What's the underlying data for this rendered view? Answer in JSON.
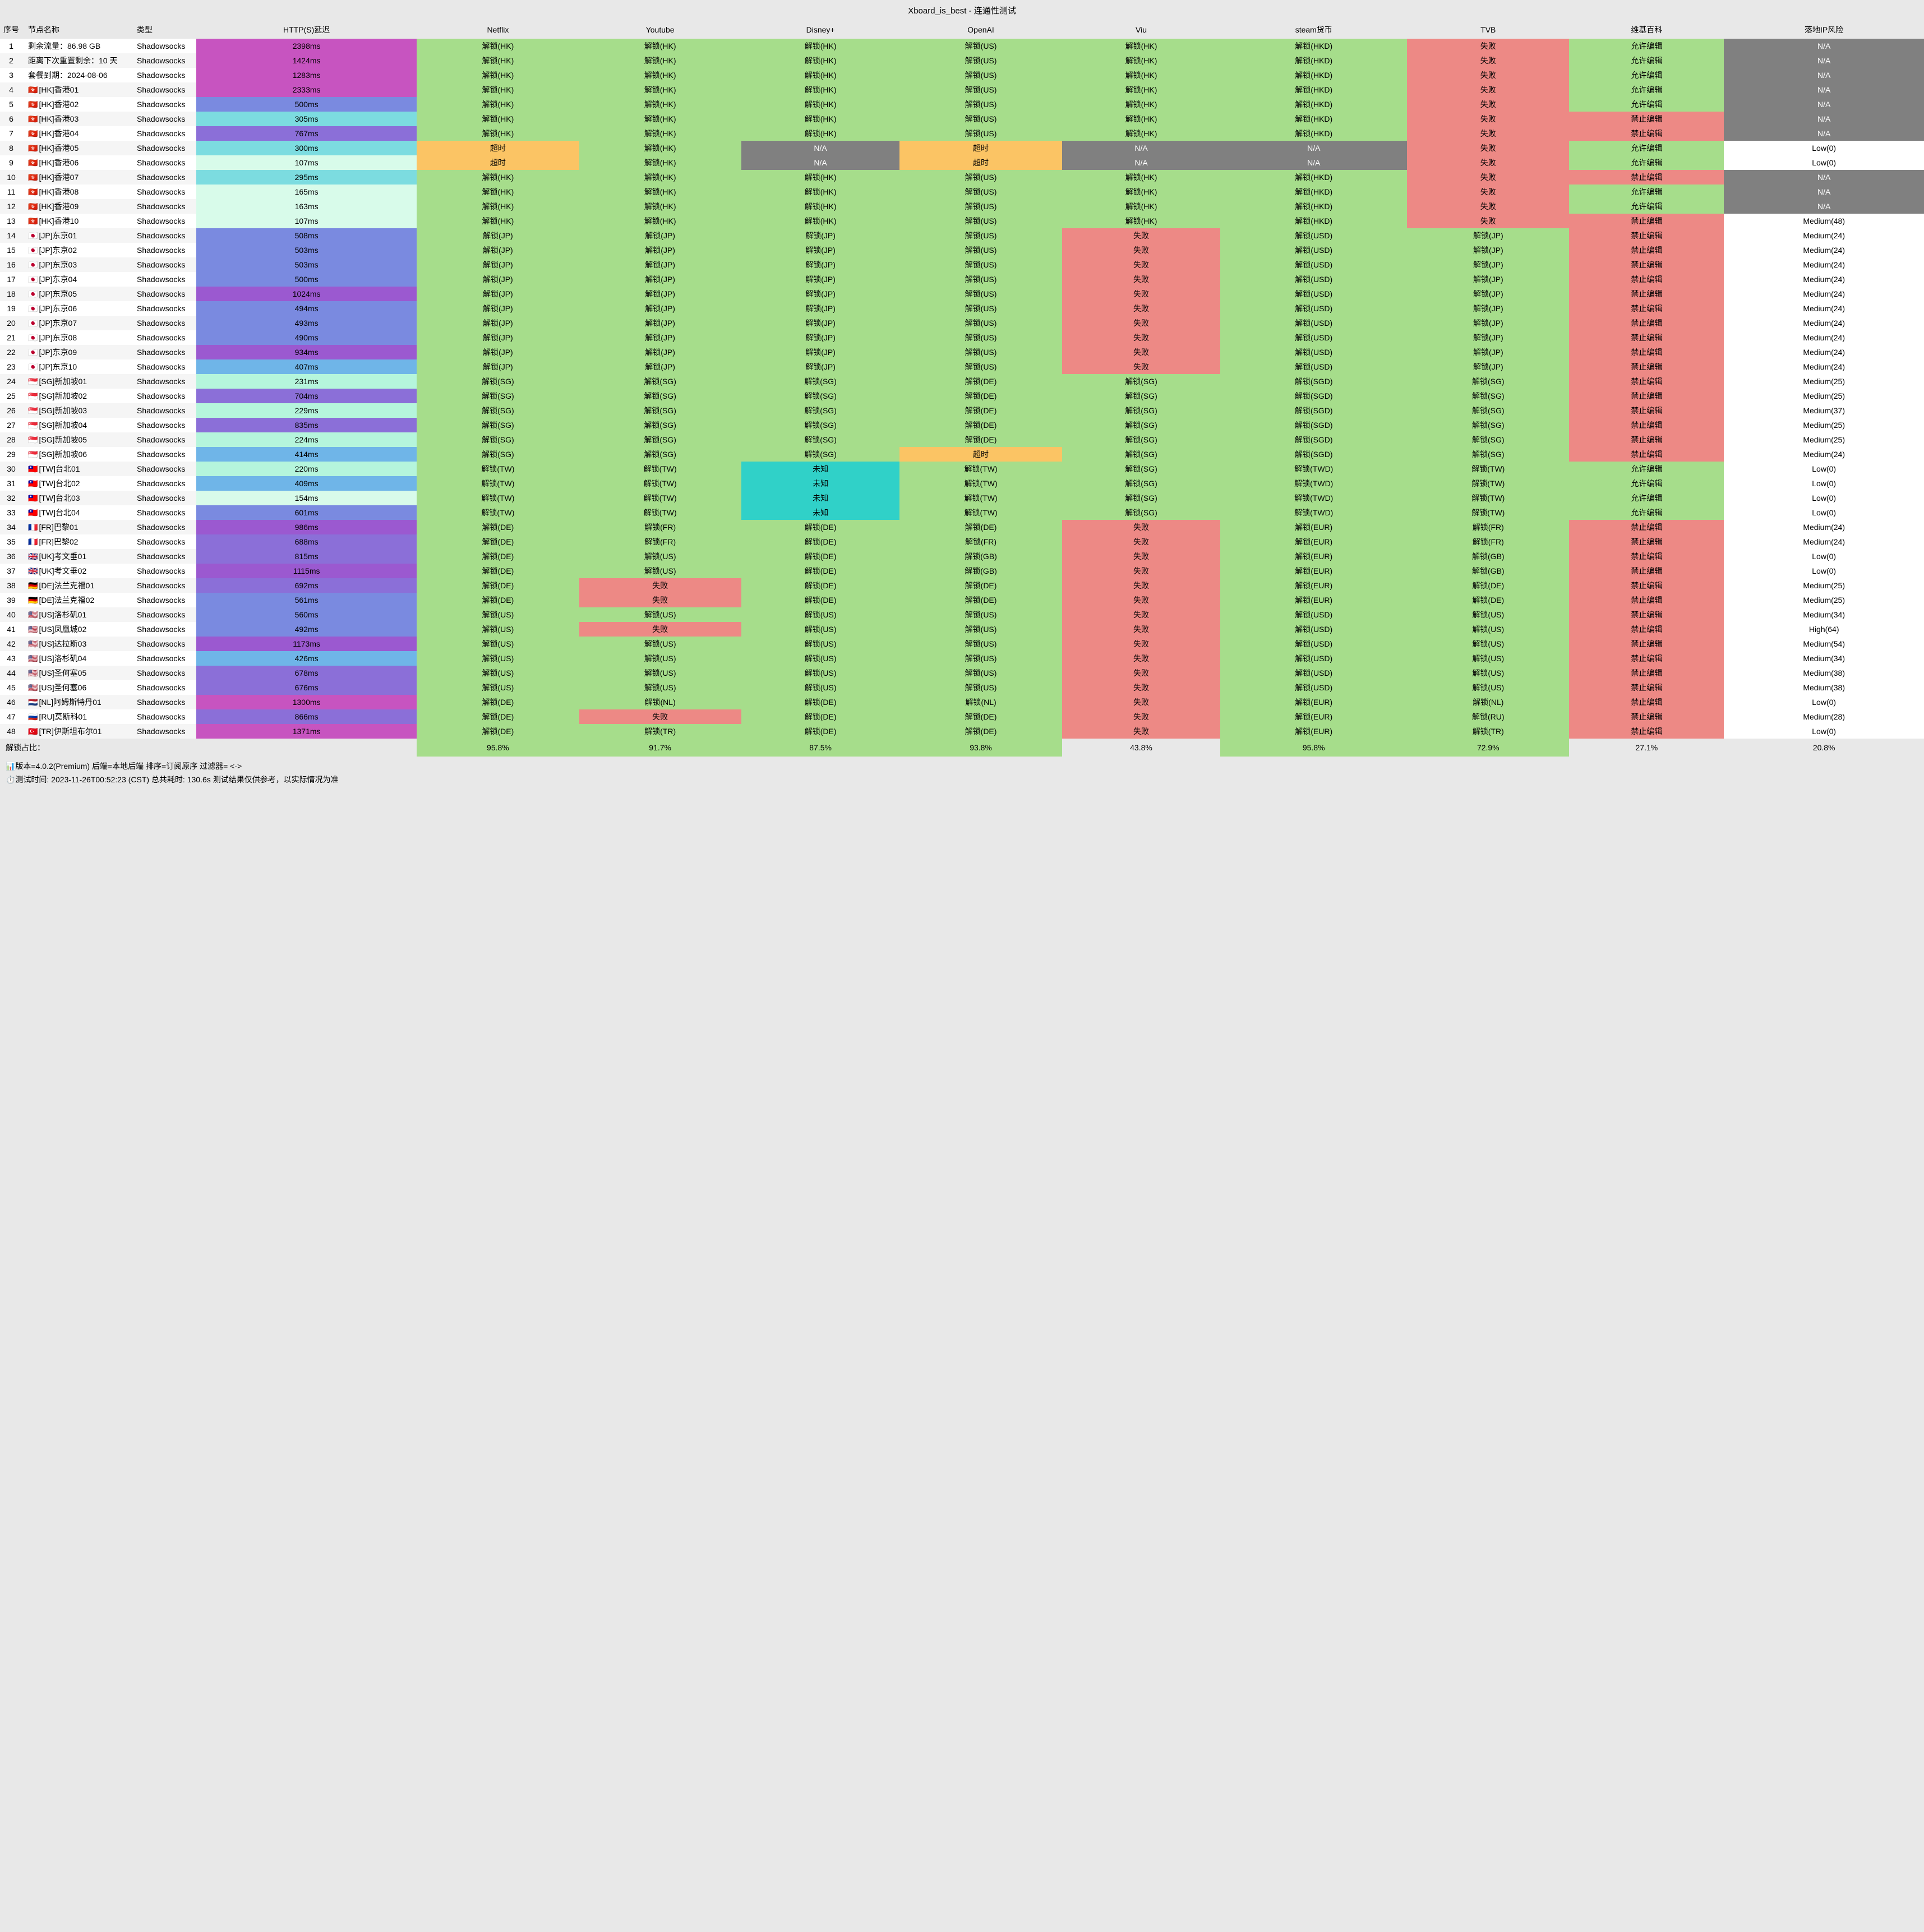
{
  "title": "Xboard_is_best - 连通性测试",
  "headers": [
    "序号",
    "节点名称",
    "类型",
    "HTTP(S)延迟",
    "Netflix",
    "Youtube",
    "Disney+",
    "OpenAI",
    "Viu",
    "steam货币",
    "TVB",
    "维基百科",
    "落地IP风险"
  ],
  "colors": {
    "green": "#a6dd8b",
    "red": "#ed8985",
    "gray": "#808080",
    "yellow": "#fbc464",
    "cyan": "#30d1c8",
    "mint": "#b5f5dc",
    "blue1": "#7a8ae0",
    "blue2": "#6fb5e8",
    "purple": "#9b59d0",
    "magenta": "#c754c0",
    "mintLight": "#d8fbea",
    "white": "#ffffff",
    "headerBg": "#e8e8e8"
  },
  "latencyScale": [
    {
      "max": 180,
      "color": "#d8fbea"
    },
    {
      "max": 260,
      "color": "#b5f5dc"
    },
    {
      "max": 350,
      "color": "#7cdce0"
    },
    {
      "max": 480,
      "color": "#6fb5e8"
    },
    {
      "max": 650,
      "color": "#7a8ae0"
    },
    {
      "max": 900,
      "color": "#8b6fd8"
    },
    {
      "max": 1200,
      "color": "#9b59d0"
    },
    {
      "max": 99999,
      "color": "#c754c0"
    }
  ],
  "cellStyles": {
    "解锁": "green",
    "失败": "red",
    "N/A": "gray",
    "超时": "yellow",
    "未知": "cyan",
    "允许编辑": "green",
    "禁止编辑": "red",
    "Low": "white",
    "Medium": "white",
    "High": "white"
  },
  "rows": [
    {
      "seq": 1,
      "name": "剩余流量：86.98 GB",
      "type": "Shadowsocks",
      "latency": "2398ms",
      "cells": [
        "解锁(HK)",
        "解锁(HK)",
        "解锁(HK)",
        "解锁(US)",
        "解锁(HK)",
        "解锁(HKD)",
        "失败",
        "允许编辑",
        "N/A"
      ]
    },
    {
      "seq": 2,
      "name": "距离下次重置剩余：10 天",
      "type": "Shadowsocks",
      "latency": "1424ms",
      "cells": [
        "解锁(HK)",
        "解锁(HK)",
        "解锁(HK)",
        "解锁(US)",
        "解锁(HK)",
        "解锁(HKD)",
        "失败",
        "允许编辑",
        "N/A"
      ]
    },
    {
      "seq": 3,
      "name": "套餐到期：2024-08-06",
      "type": "Shadowsocks",
      "latency": "1283ms",
      "cells": [
        "解锁(HK)",
        "解锁(HK)",
        "解锁(HK)",
        "解锁(US)",
        "解锁(HK)",
        "解锁(HKD)",
        "失败",
        "允许编辑",
        "N/A"
      ]
    },
    {
      "seq": 4,
      "flag": "🇭🇰",
      "name": "[HK]香港01",
      "type": "Shadowsocks",
      "latency": "2333ms",
      "cells": [
        "解锁(HK)",
        "解锁(HK)",
        "解锁(HK)",
        "解锁(US)",
        "解锁(HK)",
        "解锁(HKD)",
        "失败",
        "允许编辑",
        "N/A"
      ]
    },
    {
      "seq": 5,
      "flag": "🇭🇰",
      "name": "[HK]香港02",
      "type": "Shadowsocks",
      "latency": "500ms",
      "cells": [
        "解锁(HK)",
        "解锁(HK)",
        "解锁(HK)",
        "解锁(US)",
        "解锁(HK)",
        "解锁(HKD)",
        "失败",
        "允许编辑",
        "N/A"
      ]
    },
    {
      "seq": 6,
      "flag": "🇭🇰",
      "name": "[HK]香港03",
      "type": "Shadowsocks",
      "latency": "305ms",
      "cells": [
        "解锁(HK)",
        "解锁(HK)",
        "解锁(HK)",
        "解锁(US)",
        "解锁(HK)",
        "解锁(HKD)",
        "失败",
        "禁止编辑",
        "N/A"
      ]
    },
    {
      "seq": 7,
      "flag": "🇭🇰",
      "name": "[HK]香港04",
      "type": "Shadowsocks",
      "latency": "767ms",
      "cells": [
        "解锁(HK)",
        "解锁(HK)",
        "解锁(HK)",
        "解锁(US)",
        "解锁(HK)",
        "解锁(HKD)",
        "失败",
        "禁止编辑",
        "N/A"
      ]
    },
    {
      "seq": 8,
      "flag": "🇭🇰",
      "name": "[HK]香港05",
      "type": "Shadowsocks",
      "latency": "300ms",
      "cells": [
        "超时",
        "解锁(HK)",
        "N/A",
        "超时",
        "N/A",
        "N/A",
        "失败",
        "允许编辑",
        "Low(0)"
      ]
    },
    {
      "seq": 9,
      "flag": "🇭🇰",
      "name": "[HK]香港06",
      "type": "Shadowsocks",
      "latency": "107ms",
      "cells": [
        "超时",
        "解锁(HK)",
        "N/A",
        "超时",
        "N/A",
        "N/A",
        "失败",
        "允许编辑",
        "Low(0)"
      ]
    },
    {
      "seq": 10,
      "flag": "🇭🇰",
      "name": "[HK]香港07",
      "type": "Shadowsocks",
      "latency": "295ms",
      "cells": [
        "解锁(HK)",
        "解锁(HK)",
        "解锁(HK)",
        "解锁(US)",
        "解锁(HK)",
        "解锁(HKD)",
        "失败",
        "禁止编辑",
        "N/A"
      ]
    },
    {
      "seq": 11,
      "flag": "🇭🇰",
      "name": "[HK]香港08",
      "type": "Shadowsocks",
      "latency": "165ms",
      "cells": [
        "解锁(HK)",
        "解锁(HK)",
        "解锁(HK)",
        "解锁(US)",
        "解锁(HK)",
        "解锁(HKD)",
        "失败",
        "允许编辑",
        "N/A"
      ]
    },
    {
      "seq": 12,
      "flag": "🇭🇰",
      "name": "[HK]香港09",
      "type": "Shadowsocks",
      "latency": "163ms",
      "cells": [
        "解锁(HK)",
        "解锁(HK)",
        "解锁(HK)",
        "解锁(US)",
        "解锁(HK)",
        "解锁(HKD)",
        "失败",
        "允许编辑",
        "N/A"
      ]
    },
    {
      "seq": 13,
      "flag": "🇭🇰",
      "name": "[HK]香港10",
      "type": "Shadowsocks",
      "latency": "107ms",
      "cells": [
        "解锁(HK)",
        "解锁(HK)",
        "解锁(HK)",
        "解锁(US)",
        "解锁(HK)",
        "解锁(HKD)",
        "失败",
        "禁止编辑",
        "Medium(48)"
      ]
    },
    {
      "seq": 14,
      "flag": "🇯🇵",
      "name": "[JP]东京01",
      "type": "Shadowsocks",
      "latency": "508ms",
      "cells": [
        "解锁(JP)",
        "解锁(JP)",
        "解锁(JP)",
        "解锁(US)",
        "失败",
        "解锁(USD)",
        "解锁(JP)",
        "禁止编辑",
        "Medium(24)"
      ]
    },
    {
      "seq": 15,
      "flag": "🇯🇵",
      "name": "[JP]东京02",
      "type": "Shadowsocks",
      "latency": "503ms",
      "cells": [
        "解锁(JP)",
        "解锁(JP)",
        "解锁(JP)",
        "解锁(US)",
        "失败",
        "解锁(USD)",
        "解锁(JP)",
        "禁止编辑",
        "Medium(24)"
      ]
    },
    {
      "seq": 16,
      "flag": "🇯🇵",
      "name": "[JP]东京03",
      "type": "Shadowsocks",
      "latency": "503ms",
      "cells": [
        "解锁(JP)",
        "解锁(JP)",
        "解锁(JP)",
        "解锁(US)",
        "失败",
        "解锁(USD)",
        "解锁(JP)",
        "禁止编辑",
        "Medium(24)"
      ]
    },
    {
      "seq": 17,
      "flag": "🇯🇵",
      "name": "[JP]东京04",
      "type": "Shadowsocks",
      "latency": "500ms",
      "cells": [
        "解锁(JP)",
        "解锁(JP)",
        "解锁(JP)",
        "解锁(US)",
        "失败",
        "解锁(USD)",
        "解锁(JP)",
        "禁止编辑",
        "Medium(24)"
      ]
    },
    {
      "seq": 18,
      "flag": "🇯🇵",
      "name": "[JP]东京05",
      "type": "Shadowsocks",
      "latency": "1024ms",
      "cells": [
        "解锁(JP)",
        "解锁(JP)",
        "解锁(JP)",
        "解锁(US)",
        "失败",
        "解锁(USD)",
        "解锁(JP)",
        "禁止编辑",
        "Medium(24)"
      ]
    },
    {
      "seq": 19,
      "flag": "🇯🇵",
      "name": "[JP]东京06",
      "type": "Shadowsocks",
      "latency": "494ms",
      "cells": [
        "解锁(JP)",
        "解锁(JP)",
        "解锁(JP)",
        "解锁(US)",
        "失败",
        "解锁(USD)",
        "解锁(JP)",
        "禁止编辑",
        "Medium(24)"
      ]
    },
    {
      "seq": 20,
      "flag": "🇯🇵",
      "name": "[JP]东京07",
      "type": "Shadowsocks",
      "latency": "493ms",
      "cells": [
        "解锁(JP)",
        "解锁(JP)",
        "解锁(JP)",
        "解锁(US)",
        "失败",
        "解锁(USD)",
        "解锁(JP)",
        "禁止编辑",
        "Medium(24)"
      ]
    },
    {
      "seq": 21,
      "flag": "🇯🇵",
      "name": "[JP]东京08",
      "type": "Shadowsocks",
      "latency": "490ms",
      "cells": [
        "解锁(JP)",
        "解锁(JP)",
        "解锁(JP)",
        "解锁(US)",
        "失败",
        "解锁(USD)",
        "解锁(JP)",
        "禁止编辑",
        "Medium(24)"
      ]
    },
    {
      "seq": 22,
      "flag": "🇯🇵",
      "name": "[JP]东京09",
      "type": "Shadowsocks",
      "latency": "934ms",
      "cells": [
        "解锁(JP)",
        "解锁(JP)",
        "解锁(JP)",
        "解锁(US)",
        "失败",
        "解锁(USD)",
        "解锁(JP)",
        "禁止编辑",
        "Medium(24)"
      ]
    },
    {
      "seq": 23,
      "flag": "🇯🇵",
      "name": "[JP]东京10",
      "type": "Shadowsocks",
      "latency": "407ms",
      "cells": [
        "解锁(JP)",
        "解锁(JP)",
        "解锁(JP)",
        "解锁(US)",
        "失败",
        "解锁(USD)",
        "解锁(JP)",
        "禁止编辑",
        "Medium(24)"
      ]
    },
    {
      "seq": 24,
      "flag": "🇸🇬",
      "name": "[SG]新加坡01",
      "type": "Shadowsocks",
      "latency": "231ms",
      "cells": [
        "解锁(SG)",
        "解锁(SG)",
        "解锁(SG)",
        "解锁(DE)",
        "解锁(SG)",
        "解锁(SGD)",
        "解锁(SG)",
        "禁止编辑",
        "Medium(25)"
      ]
    },
    {
      "seq": 25,
      "flag": "🇸🇬",
      "name": "[SG]新加坡02",
      "type": "Shadowsocks",
      "latency": "704ms",
      "cells": [
        "解锁(SG)",
        "解锁(SG)",
        "解锁(SG)",
        "解锁(DE)",
        "解锁(SG)",
        "解锁(SGD)",
        "解锁(SG)",
        "禁止编辑",
        "Medium(25)"
      ]
    },
    {
      "seq": 26,
      "flag": "🇸🇬",
      "name": "[SG]新加坡03",
      "type": "Shadowsocks",
      "latency": "229ms",
      "cells": [
        "解锁(SG)",
        "解锁(SG)",
        "解锁(SG)",
        "解锁(DE)",
        "解锁(SG)",
        "解锁(SGD)",
        "解锁(SG)",
        "禁止编辑",
        "Medium(37)"
      ]
    },
    {
      "seq": 27,
      "flag": "🇸🇬",
      "name": "[SG]新加坡04",
      "type": "Shadowsocks",
      "latency": "835ms",
      "cells": [
        "解锁(SG)",
        "解锁(SG)",
        "解锁(SG)",
        "解锁(DE)",
        "解锁(SG)",
        "解锁(SGD)",
        "解锁(SG)",
        "禁止编辑",
        "Medium(25)"
      ]
    },
    {
      "seq": 28,
      "flag": "🇸🇬",
      "name": "[SG]新加坡05",
      "type": "Shadowsocks",
      "latency": "224ms",
      "cells": [
        "解锁(SG)",
        "解锁(SG)",
        "解锁(SG)",
        "解锁(DE)",
        "解锁(SG)",
        "解锁(SGD)",
        "解锁(SG)",
        "禁止编辑",
        "Medium(25)"
      ]
    },
    {
      "seq": 29,
      "flag": "🇸🇬",
      "name": "[SG]新加坡06",
      "type": "Shadowsocks",
      "latency": "414ms",
      "cells": [
        "解锁(SG)",
        "解锁(SG)",
        "解锁(SG)",
        "超时",
        "解锁(SG)",
        "解锁(SGD)",
        "解锁(SG)",
        "禁止编辑",
        "Medium(24)"
      ]
    },
    {
      "seq": 30,
      "flag": "🇹🇼",
      "name": "[TW]台北01",
      "type": "Shadowsocks",
      "latency": "220ms",
      "cells": [
        "解锁(TW)",
        "解锁(TW)",
        "未知",
        "解锁(TW)",
        "解锁(SG)",
        "解锁(TWD)",
        "解锁(TW)",
        "允许编辑",
        "Low(0)"
      ]
    },
    {
      "seq": 31,
      "flag": "🇹🇼",
      "name": "[TW]台北02",
      "type": "Shadowsocks",
      "latency": "409ms",
      "cells": [
        "解锁(TW)",
        "解锁(TW)",
        "未知",
        "解锁(TW)",
        "解锁(SG)",
        "解锁(TWD)",
        "解锁(TW)",
        "允许编辑",
        "Low(0)"
      ]
    },
    {
      "seq": 32,
      "flag": "🇹🇼",
      "name": "[TW]台北03",
      "type": "Shadowsocks",
      "latency": "154ms",
      "cells": [
        "解锁(TW)",
        "解锁(TW)",
        "未知",
        "解锁(TW)",
        "解锁(SG)",
        "解锁(TWD)",
        "解锁(TW)",
        "允许编辑",
        "Low(0)"
      ]
    },
    {
      "seq": 33,
      "flag": "🇹🇼",
      "name": "[TW]台北04",
      "type": "Shadowsocks",
      "latency": "601ms",
      "cells": [
        "解锁(TW)",
        "解锁(TW)",
        "未知",
        "解锁(TW)",
        "解锁(SG)",
        "解锁(TWD)",
        "解锁(TW)",
        "允许编辑",
        "Low(0)"
      ]
    },
    {
      "seq": 34,
      "flag": "🇫🇷",
      "name": "[FR]巴黎01",
      "type": "Shadowsocks",
      "latency": "986ms",
      "cells": [
        "解锁(DE)",
        "解锁(FR)",
        "解锁(DE)",
        "解锁(DE)",
        "失败",
        "解锁(EUR)",
        "解锁(FR)",
        "禁止编辑",
        "Medium(24)"
      ]
    },
    {
      "seq": 35,
      "flag": "🇫🇷",
      "name": "[FR]巴黎02",
      "type": "Shadowsocks",
      "latency": "688ms",
      "cells": [
        "解锁(DE)",
        "解锁(FR)",
        "解锁(DE)",
        "解锁(FR)",
        "失败",
        "解锁(EUR)",
        "解锁(FR)",
        "禁止编辑",
        "Medium(24)"
      ]
    },
    {
      "seq": 36,
      "flag": "🇬🇧",
      "name": "[UK]考文垂01",
      "type": "Shadowsocks",
      "latency": "815ms",
      "cells": [
        "解锁(DE)",
        "解锁(US)",
        "解锁(DE)",
        "解锁(GB)",
        "失败",
        "解锁(EUR)",
        "解锁(GB)",
        "禁止编辑",
        "Low(0)"
      ]
    },
    {
      "seq": 37,
      "flag": "🇬🇧",
      "name": "[UK]考文垂02",
      "type": "Shadowsocks",
      "latency": "1115ms",
      "cells": [
        "解锁(DE)",
        "解锁(US)",
        "解锁(DE)",
        "解锁(GB)",
        "失败",
        "解锁(EUR)",
        "解锁(GB)",
        "禁止编辑",
        "Low(0)"
      ]
    },
    {
      "seq": 38,
      "flag": "🇩🇪",
      "name": "[DE]法兰克福01",
      "type": "Shadowsocks",
      "latency": "692ms",
      "cells": [
        "解锁(DE)",
        "失败",
        "解锁(DE)",
        "解锁(DE)",
        "失败",
        "解锁(EUR)",
        "解锁(DE)",
        "禁止编辑",
        "Medium(25)"
      ]
    },
    {
      "seq": 39,
      "flag": "🇩🇪",
      "name": "[DE]法兰克福02",
      "type": "Shadowsocks",
      "latency": "561ms",
      "cells": [
        "解锁(DE)",
        "失败",
        "解锁(DE)",
        "解锁(DE)",
        "失败",
        "解锁(EUR)",
        "解锁(DE)",
        "禁止编辑",
        "Medium(25)"
      ]
    },
    {
      "seq": 40,
      "flag": "🇺🇸",
      "name": "[US]洛杉矶01",
      "type": "Shadowsocks",
      "latency": "560ms",
      "cells": [
        "解锁(US)",
        "解锁(US)",
        "解锁(US)",
        "解锁(US)",
        "失败",
        "解锁(USD)",
        "解锁(US)",
        "禁止编辑",
        "Medium(34)"
      ]
    },
    {
      "seq": 41,
      "flag": "🇺🇸",
      "name": "[US]凤凰城02",
      "type": "Shadowsocks",
      "latency": "492ms",
      "cells": [
        "解锁(US)",
        "失败",
        "解锁(US)",
        "解锁(US)",
        "失败",
        "解锁(USD)",
        "解锁(US)",
        "禁止编辑",
        "High(64)"
      ]
    },
    {
      "seq": 42,
      "flag": "🇺🇸",
      "name": "[US]达拉斯03",
      "type": "Shadowsocks",
      "latency": "1173ms",
      "cells": [
        "解锁(US)",
        "解锁(US)",
        "解锁(US)",
        "解锁(US)",
        "失败",
        "解锁(USD)",
        "解锁(US)",
        "禁止编辑",
        "Medium(54)"
      ]
    },
    {
      "seq": 43,
      "flag": "🇺🇸",
      "name": "[US]洛杉矶04",
      "type": "Shadowsocks",
      "latency": "426ms",
      "cells": [
        "解锁(US)",
        "解锁(US)",
        "解锁(US)",
        "解锁(US)",
        "失败",
        "解锁(USD)",
        "解锁(US)",
        "禁止编辑",
        "Medium(34)"
      ]
    },
    {
      "seq": 44,
      "flag": "🇺🇸",
      "name": "[US]圣何塞05",
      "type": "Shadowsocks",
      "latency": "678ms",
      "cells": [
        "解锁(US)",
        "解锁(US)",
        "解锁(US)",
        "解锁(US)",
        "失败",
        "解锁(USD)",
        "解锁(US)",
        "禁止编辑",
        "Medium(38)"
      ]
    },
    {
      "seq": 45,
      "flag": "🇺🇸",
      "name": "[US]圣何塞06",
      "type": "Shadowsocks",
      "latency": "676ms",
      "cells": [
        "解锁(US)",
        "解锁(US)",
        "解锁(US)",
        "解锁(US)",
        "失败",
        "解锁(USD)",
        "解锁(US)",
        "禁止编辑",
        "Medium(38)"
      ]
    },
    {
      "seq": 46,
      "flag": "🇳🇱",
      "name": "[NL]阿姆斯特丹01",
      "type": "Shadowsocks",
      "latency": "1300ms",
      "cells": [
        "解锁(DE)",
        "解锁(NL)",
        "解锁(DE)",
        "解锁(NL)",
        "失败",
        "解锁(EUR)",
        "解锁(NL)",
        "禁止编辑",
        "Low(0)"
      ]
    },
    {
      "seq": 47,
      "flag": "🇷🇺",
      "name": "[RU]莫斯科01",
      "type": "Shadowsocks",
      "latency": "866ms",
      "cells": [
        "解锁(DE)",
        "失败",
        "解锁(DE)",
        "解锁(DE)",
        "失败",
        "解锁(EUR)",
        "解锁(RU)",
        "禁止编辑",
        "Medium(28)"
      ]
    },
    {
      "seq": 48,
      "flag": "🇹🇷",
      "name": "[TR]伊斯坦布尔01",
      "type": "Shadowsocks",
      "latency": "1371ms",
      "cells": [
        "解锁(DE)",
        "解锁(TR)",
        "解锁(DE)",
        "解锁(DE)",
        "失败",
        "解锁(EUR)",
        "解锁(TR)",
        "禁止编辑",
        "Low(0)"
      ]
    }
  ],
  "summary": {
    "label": "解锁占比：",
    "values": [
      "95.8%",
      "91.7%",
      "87.5%",
      "93.8%",
      "43.8%",
      "95.8%",
      "72.9%",
      "27.1%",
      "20.8%"
    ]
  },
  "footer": {
    "line1": "📊版本=4.0.2(Premium)  后端=本地后端  排序=订阅原序  过滤器= <->",
    "line2": "⏱️测试时间: 2023-11-26T00:52:23 (CST) 总共耗时: 130.6s 测试结果仅供参考，以实际情况为准"
  }
}
